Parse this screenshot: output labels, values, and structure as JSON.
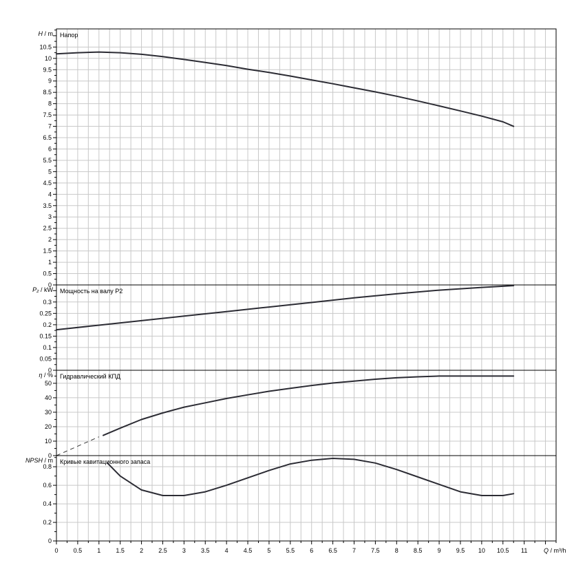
{
  "chart_data": {
    "type": "line",
    "x_axis": {
      "label_var": "Q",
      "label_unit": "m³/h",
      "range": [
        0,
        11.75
      ],
      "tick_labels": [
        "0",
        "0.5",
        "1",
        "1.5",
        "2",
        "2.5",
        "3",
        "3.5",
        "4",
        "4.5",
        "5",
        "5.5",
        "6",
        "6.5",
        "7",
        "7.5",
        "8",
        "8.5",
        "9",
        "9.5",
        "10",
        "10.5",
        "11"
      ]
    },
    "grid": true,
    "panels": [
      {
        "id": "head",
        "title": "Напор",
        "y_var": "H",
        "y_unit": "m",
        "ylim": [
          0,
          11.3
        ],
        "y_ticks": [
          0,
          0.5,
          1,
          1.5,
          2,
          2.5,
          3,
          3.5,
          4,
          4.5,
          5,
          5.5,
          6,
          6.5,
          7,
          7.5,
          8,
          8.5,
          9,
          9.5,
          10,
          10.5
        ],
        "y_tick_labels": [
          "0",
          "0.5",
          "1",
          "1.5",
          "2",
          "2.5",
          "3",
          "3.5",
          "4",
          "4.5",
          "5",
          "5.5",
          "6",
          "6.5",
          "7",
          "7.5",
          "8",
          "8.5",
          "9",
          "9.5",
          "10",
          "10.5"
        ],
        "series": [
          {
            "x": [
              0,
              0.5,
              1,
              1.5,
              2,
              2.5,
              3,
              3.5,
              4,
              4.5,
              5,
              5.5,
              6,
              6.5,
              7,
              7.5,
              8,
              8.5,
              9,
              9.5,
              10,
              10.5,
              10.75
            ],
            "y": [
              10.2,
              10.25,
              10.28,
              10.25,
              10.18,
              10.08,
              9.95,
              9.82,
              9.68,
              9.52,
              9.38,
              9.22,
              9.05,
              8.88,
              8.7,
              8.52,
              8.33,
              8.12,
              7.9,
              7.68,
              7.45,
              7.2,
              7.0
            ]
          }
        ]
      },
      {
        "id": "power",
        "title": "Мощность на валу P2",
        "y_var": "P₂",
        "y_unit": "kW",
        "ylim": [
          0,
          0.375
        ],
        "y_ticks": [
          0,
          0.05,
          0.1,
          0.15,
          0.2,
          0.25,
          0.3
        ],
        "y_tick_labels": [
          "0",
          "0.05",
          "0.1",
          "0.15",
          "0.2",
          "0.25",
          "0.3"
        ],
        "series": [
          {
            "x": [
              0,
              1,
              2,
              3,
              4,
              5,
              6,
              7,
              8,
              9,
              10,
              10.75
            ],
            "y": [
              0.178,
              0.198,
              0.218,
              0.238,
              0.258,
              0.278,
              0.298,
              0.318,
              0.336,
              0.352,
              0.364,
              0.372
            ]
          }
        ]
      },
      {
        "id": "efficiency",
        "title": "Гидравлический КПД",
        "y_var": "η",
        "y_unit": "%",
        "ylim": [
          0,
          59
        ],
        "y_ticks": [
          0,
          10,
          20,
          30,
          40,
          50
        ],
        "y_tick_labels": [
          "0",
          "10",
          "20",
          "30",
          "40",
          "50"
        ],
        "series": [
          {
            "x": [
              1.1,
              1.5,
              2,
              2.5,
              3,
              3.5,
              4,
              4.5,
              5,
              5.5,
              6,
              6.5,
              7,
              7.5,
              8,
              8.5,
              9,
              9.5,
              10,
              10.75
            ],
            "y": [
              14,
              19,
              25,
              29.5,
              33.5,
              36.5,
              39.5,
              42,
              44.5,
              46.5,
              48.5,
              50.2,
              51.5,
              52.8,
              53.8,
              54.5,
              55,
              55,
              55,
              55
            ]
          }
        ],
        "dashed_extension": {
          "x": [
            0,
            1.0
          ],
          "y": [
            0,
            13
          ]
        }
      },
      {
        "id": "npsh",
        "title": "Кривые кавитационного запаса",
        "y_var": "NPSH",
        "y_unit": "m",
        "ylim": [
          0,
          0.92
        ],
        "y_ticks": [
          0,
          0.2,
          0.4,
          0.6,
          0.8
        ],
        "y_tick_labels": [
          "0",
          "0.2",
          "0.4",
          "0.6",
          "0.8"
        ],
        "series": [
          {
            "x": [
              1.2,
              1.5,
              2,
              2.5,
              3,
              3.5,
              4,
              4.5,
              5,
              5.5,
              6,
              6.5,
              7,
              7.5,
              8,
              8.5,
              9,
              9.5,
              10,
              10.5,
              10.75
            ],
            "y": [
              0.84,
              0.7,
              0.55,
              0.49,
              0.49,
              0.53,
              0.6,
              0.68,
              0.76,
              0.83,
              0.87,
              0.89,
              0.88,
              0.84,
              0.77,
              0.69,
              0.61,
              0.53,
              0.49,
              0.49,
              0.51
            ]
          }
        ]
      }
    ]
  }
}
